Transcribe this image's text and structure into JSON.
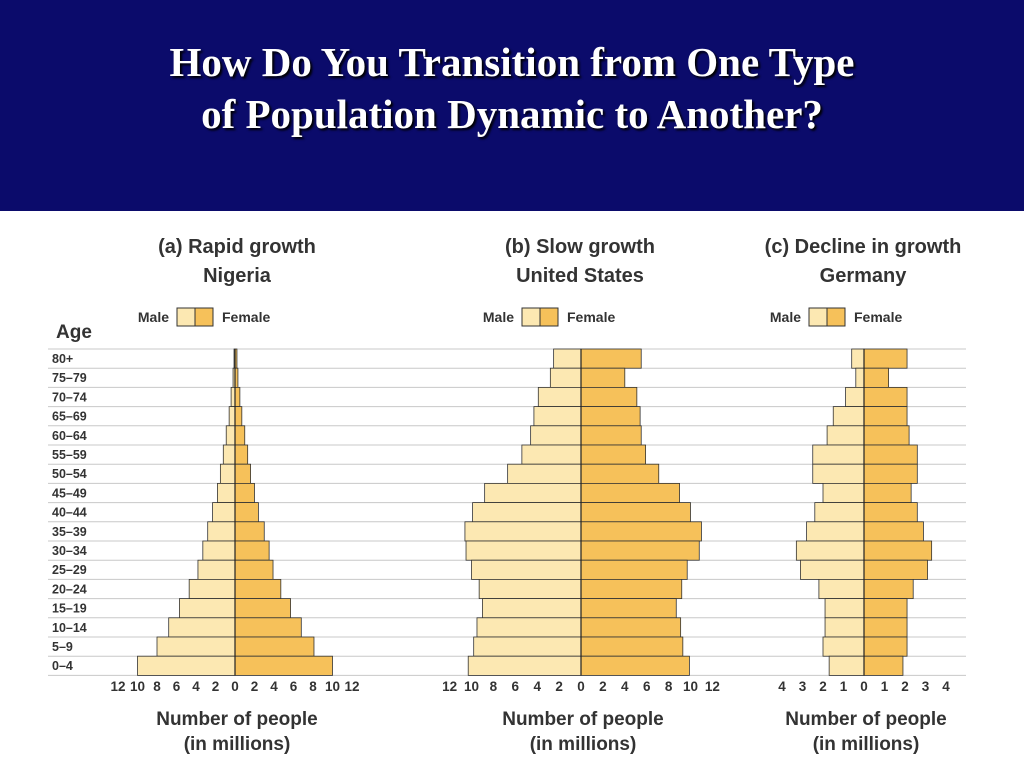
{
  "slide": {
    "title_line1": "How Do You Transition from One Type",
    "title_line2": "of Population Dynamic to Another?"
  },
  "colors": {
    "header_bg": "#0b0b6b",
    "male": "#fce8b2",
    "female": "#f6c15a",
    "bar_stroke": "#333333",
    "grid": "#c8c8c8"
  },
  "age_axis_label": "Age",
  "age_groups": [
    "80+",
    "75–79",
    "70–74",
    "65–69",
    "60–64",
    "55–59",
    "50–54",
    "45–49",
    "40–44",
    "35–39",
    "30–34",
    "25–29",
    "20–24",
    "15–19",
    "10–14",
    "5–9",
    "0–4"
  ],
  "chart_data": [
    {
      "type": "bar",
      "orientation": "horizontal-population-pyramid",
      "title": "(a) Rapid growth",
      "subtitle": "Nigeria",
      "legend": [
        "Male",
        "Female"
      ],
      "xlabel_line1": "Number of people",
      "xlabel_line2": "(in millions)",
      "xlim": [
        -12,
        12
      ],
      "ticks": [
        12,
        10,
        8,
        6,
        4,
        2,
        0,
        2,
        4,
        6,
        8,
        10,
        12
      ],
      "categories": [
        "80+",
        "75–79",
        "70–74",
        "65–69",
        "60–64",
        "55–59",
        "50–54",
        "45–49",
        "40–44",
        "35–39",
        "30–34",
        "25–29",
        "20–24",
        "15–19",
        "10–14",
        "5–9",
        "0–4"
      ],
      "series": [
        {
          "name": "Male",
          "values": [
            0.1,
            0.2,
            0.4,
            0.6,
            0.9,
            1.2,
            1.5,
            1.8,
            2.3,
            2.8,
            3.3,
            3.8,
            4.7,
            5.7,
            6.8,
            8.0,
            10.0
          ]
        },
        {
          "name": "Female",
          "values": [
            0.2,
            0.3,
            0.5,
            0.7,
            1.0,
            1.3,
            1.6,
            2.0,
            2.4,
            3.0,
            3.5,
            3.9,
            4.7,
            5.7,
            6.8,
            8.1,
            10.0
          ]
        }
      ]
    },
    {
      "type": "bar",
      "orientation": "horizontal-population-pyramid",
      "title": "(b) Slow growth",
      "subtitle": "United States",
      "legend": [
        "Male",
        "Female"
      ],
      "xlabel_line1": "Number of people",
      "xlabel_line2": "(in millions)",
      "xlim": [
        -12,
        12
      ],
      "ticks": [
        12,
        10,
        8,
        6,
        4,
        2,
        0,
        2,
        4,
        6,
        8,
        10,
        12
      ],
      "categories": [
        "80+",
        "75–79",
        "70–74",
        "65–69",
        "60–64",
        "55–59",
        "50–54",
        "45–49",
        "40–44",
        "35–39",
        "30–34",
        "25–29",
        "20–24",
        "15–19",
        "10–14",
        "5–9",
        "0–4"
      ],
      "series": [
        {
          "name": "Male",
          "values": [
            2.5,
            2.8,
            3.9,
            4.3,
            4.6,
            5.4,
            6.7,
            8.8,
            9.9,
            10.6,
            10.5,
            10.0,
            9.3,
            9.0,
            9.5,
            9.8,
            10.3
          ]
        },
        {
          "name": "Female",
          "values": [
            5.5,
            4.0,
            5.1,
            5.4,
            5.5,
            5.9,
            7.1,
            9.0,
            10.0,
            11.0,
            10.8,
            9.7,
            9.2,
            8.7,
            9.1,
            9.3,
            9.9
          ]
        }
      ]
    },
    {
      "type": "bar",
      "orientation": "horizontal-population-pyramid",
      "title": "(c) Decline in growth",
      "subtitle": "Germany",
      "legend": [
        "Male",
        "Female"
      ],
      "xlabel_line1": "Number of people",
      "xlabel_line2": "(in millions)",
      "xlim": [
        -4,
        4
      ],
      "ticks": [
        4,
        3,
        2,
        1,
        0,
        1,
        2,
        3,
        4
      ],
      "categories": [
        "80+",
        "75–79",
        "70–74",
        "65–69",
        "60–64",
        "55–59",
        "50–54",
        "45–49",
        "40–44",
        "35–39",
        "30–34",
        "25–29",
        "20–24",
        "15–19",
        "10–14",
        "5–9",
        "0–4"
      ],
      "series": [
        {
          "name": "Male",
          "values": [
            0.6,
            0.4,
            0.9,
            1.5,
            1.8,
            2.5,
            2.5,
            2.0,
            2.4,
            2.8,
            3.3,
            3.1,
            2.2,
            1.9,
            1.9,
            2.0,
            1.7
          ]
        },
        {
          "name": "Female",
          "values": [
            2.1,
            1.2,
            2.1,
            2.1,
            2.2,
            2.6,
            2.6,
            2.3,
            2.6,
            2.9,
            3.3,
            3.1,
            2.4,
            2.1,
            2.1,
            2.1,
            1.9
          ]
        }
      ]
    }
  ]
}
